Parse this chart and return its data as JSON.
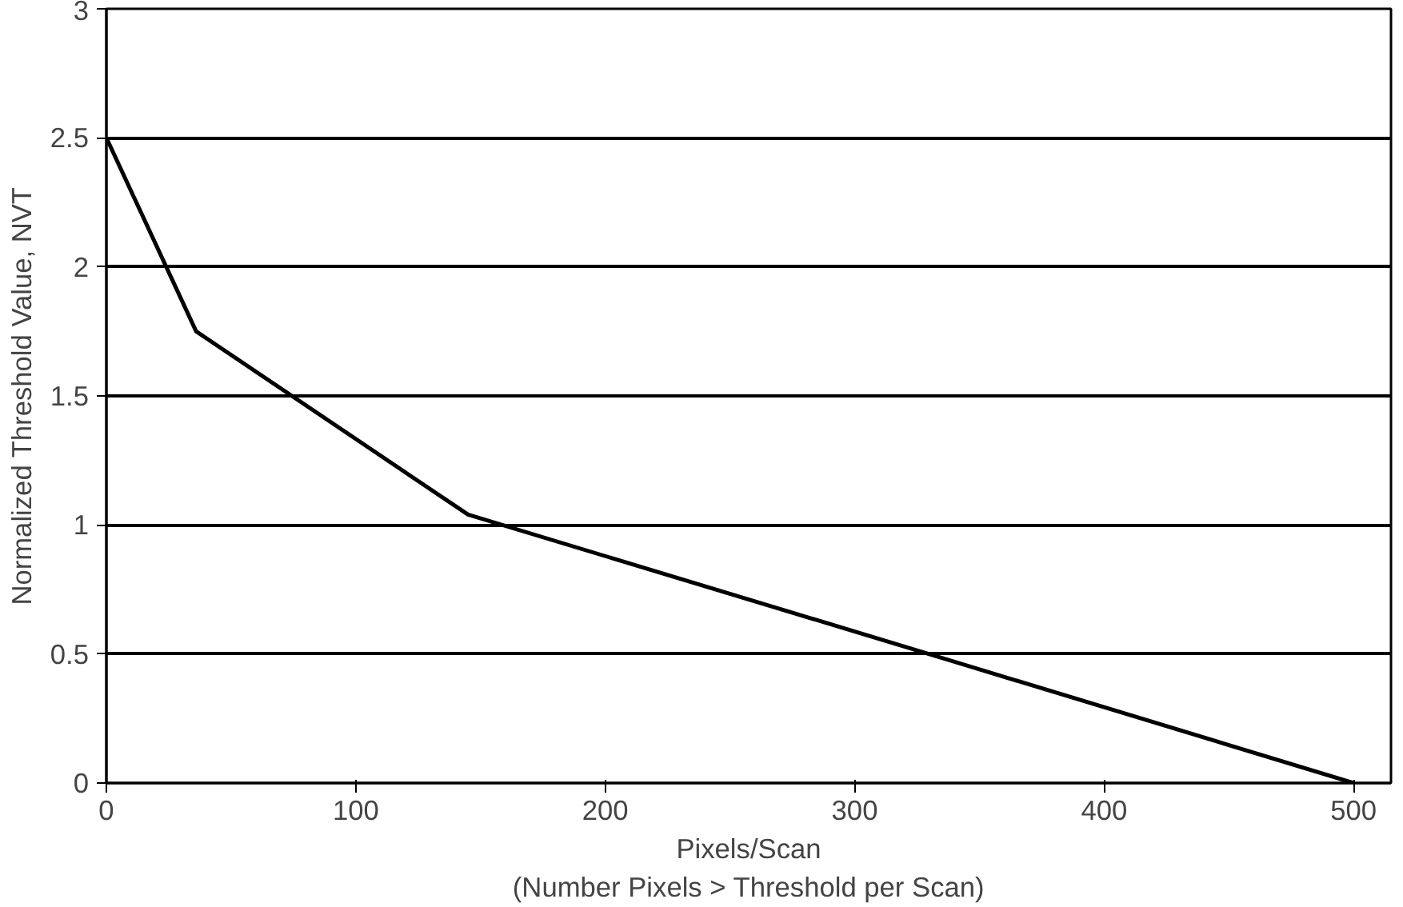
{
  "chart_data": {
    "type": "line",
    "xlabel": "Pixels/Scan\n(Number Pixels > Threshold per Scan)",
    "ylabel": "Normalized Threshold Value, NVT",
    "x": [
      0,
      36,
      145,
      340,
      500
    ],
    "series": [
      {
        "color": "#000000",
        "values": [
          2.5,
          1.75,
          1.04,
          0.47,
          0
        ]
      }
    ],
    "xlim": [
      0,
      515
    ],
    "ylim": [
      0,
      3
    ],
    "xticks": [
      0,
      100,
      200,
      300,
      400,
      500
    ],
    "yticks": [
      0,
      0.5,
      1,
      1.5,
      2,
      2.5,
      3
    ],
    "grid": "y",
    "marker": "none",
    "line_style": "solid"
  }
}
